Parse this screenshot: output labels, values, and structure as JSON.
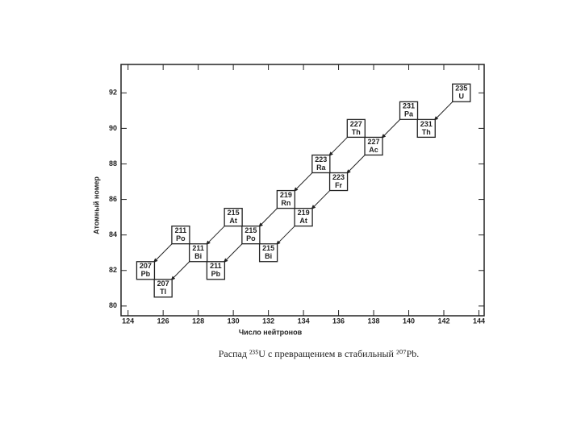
{
  "chart_data": {
    "type": "scatter",
    "x_label": "Число нейтронов",
    "y_label": "Атомный номер",
    "caption": "Распад ²³⁵U с превращением в стабильный ²⁰⁷Pb.",
    "xlim": [
      123.6,
      144.3
    ],
    "ylim": [
      79.45,
      93.6
    ],
    "xticks": [
      124,
      126,
      128,
      130,
      132,
      134,
      136,
      138,
      140,
      142,
      144
    ],
    "yticks": [
      80,
      82,
      84,
      86,
      88,
      90,
      92
    ],
    "nuclides": [
      {
        "mass": "235",
        "symbol": "U",
        "n": 143,
        "z": 92
      },
      {
        "mass": "231",
        "symbol": "Th",
        "n": 141,
        "z": 90
      },
      {
        "mass": "231",
        "symbol": "Pa",
        "n": 140,
        "z": 91
      },
      {
        "mass": "227",
        "symbol": "Ac",
        "n": 138,
        "z": 89
      },
      {
        "mass": "227",
        "symbol": "Th",
        "n": 137,
        "z": 90
      },
      {
        "mass": "223",
        "symbol": "Fr",
        "n": 136,
        "z": 87
      },
      {
        "mass": "223",
        "symbol": "Ra",
        "n": 135,
        "z": 88
      },
      {
        "mass": "219",
        "symbol": "Rn",
        "n": 133,
        "z": 86
      },
      {
        "mass": "219",
        "symbol": "At",
        "n": 134,
        "z": 85
      },
      {
        "mass": "215",
        "symbol": "Po",
        "n": 131,
        "z": 84
      },
      {
        "mass": "215",
        "symbol": "At",
        "n": 130,
        "z": 85
      },
      {
        "mass": "215",
        "symbol": "Bi",
        "n": 132,
        "z": 83
      },
      {
        "mass": "211",
        "symbol": "Pb",
        "n": 129,
        "z": 82
      },
      {
        "mass": "211",
        "symbol": "Bi",
        "n": 128,
        "z": 83
      },
      {
        "mass": "211",
        "symbol": "Po",
        "n": 127,
        "z": 84
      },
      {
        "mass": "207",
        "symbol": "Tl",
        "n": 126,
        "z": 81
      },
      {
        "mass": "207",
        "symbol": "Pb",
        "n": 125,
        "z": 82
      }
    ]
  }
}
